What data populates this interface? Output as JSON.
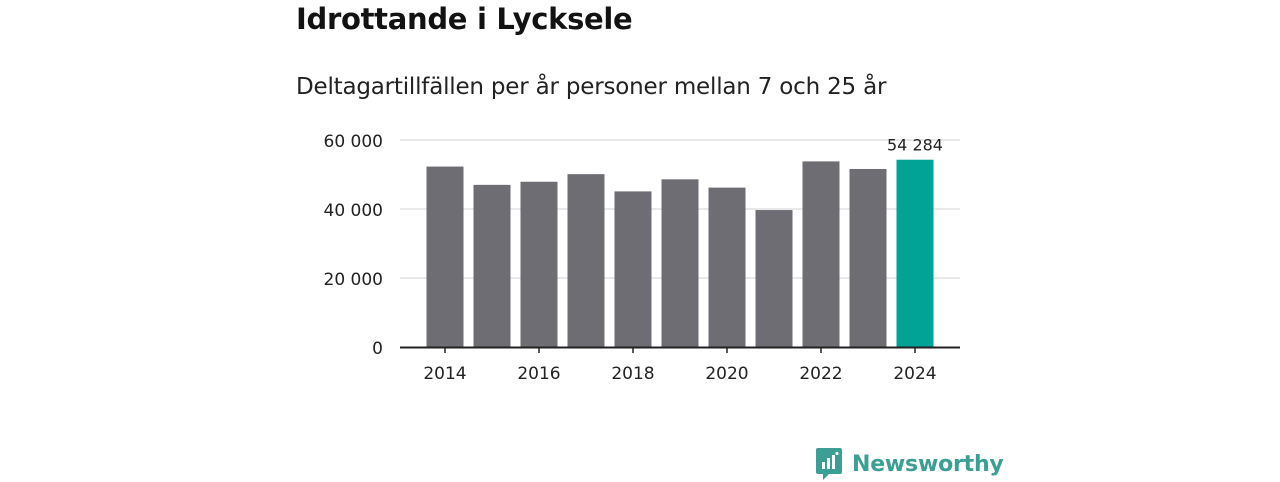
{
  "title": "Idrottande i Lycksele",
  "brand": {
    "name": "Newsworthy",
    "icon": "newsworthy-logo-icon",
    "color": "#3b9f95"
  },
  "chart_data": {
    "type": "bar",
    "title": "Idrottande i Lycksele",
    "subtitle": "Deltagartillfällen per år personer mellan 7 och 25 år",
    "xlabel": "",
    "ylabel": "",
    "categories": [
      "2014",
      "2015",
      "2016",
      "2017",
      "2018",
      "2019",
      "2020",
      "2021",
      "2022",
      "2023",
      "2024"
    ],
    "values": [
      52300,
      47000,
      47900,
      50100,
      45100,
      48600,
      46200,
      39700,
      53800,
      51600,
      54284
    ],
    "ylim": [
      0,
      60000
    ],
    "yticks": [
      0,
      20000,
      40000,
      60000
    ],
    "ytick_labels": [
      "0",
      "20 000",
      "40 000",
      "60 000"
    ],
    "xticks": [
      "2014",
      "2016",
      "2018",
      "2020",
      "2022",
      "2024"
    ],
    "grid": true,
    "legend": "none",
    "annotations": [
      {
        "category": "2024",
        "label": "54 284"
      }
    ],
    "colors": {
      "bar": "#6e6d74",
      "highlight": "#00a396",
      "grid": "#d9d9d9",
      "axis": "#222222"
    },
    "highlight_category": "2024"
  }
}
